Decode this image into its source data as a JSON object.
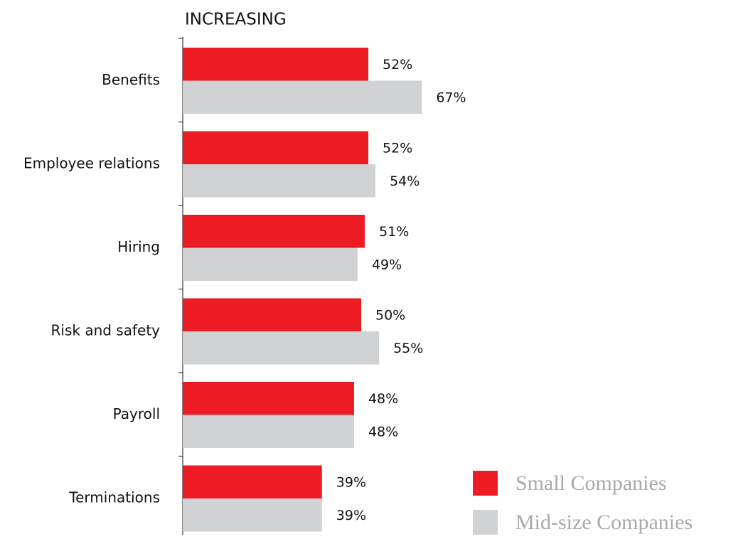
{
  "chart_data": {
    "type": "bar",
    "orientation": "horizontal",
    "title": "INCREASING",
    "categories": [
      "Benefits",
      "Employee relations",
      "Hiring",
      "Risk and safety",
      "Payroll",
      "Terminations"
    ],
    "series": [
      {
        "name": "Small Companies",
        "color": "#ed1c24",
        "values": [
          52,
          52,
          51,
          50,
          48,
          39
        ],
        "value_labels": [
          "52%",
          "52%",
          "51%",
          "50%",
          "48%",
          "39%"
        ]
      },
      {
        "name": "Mid-size Companies",
        "color": "#d1d2d4",
        "values": [
          67,
          54,
          49,
          55,
          48,
          39
        ],
        "value_labels": [
          "67%",
          "54%",
          "49%",
          "55%",
          "48%",
          "39%"
        ]
      }
    ],
    "legend": "lower right"
  }
}
